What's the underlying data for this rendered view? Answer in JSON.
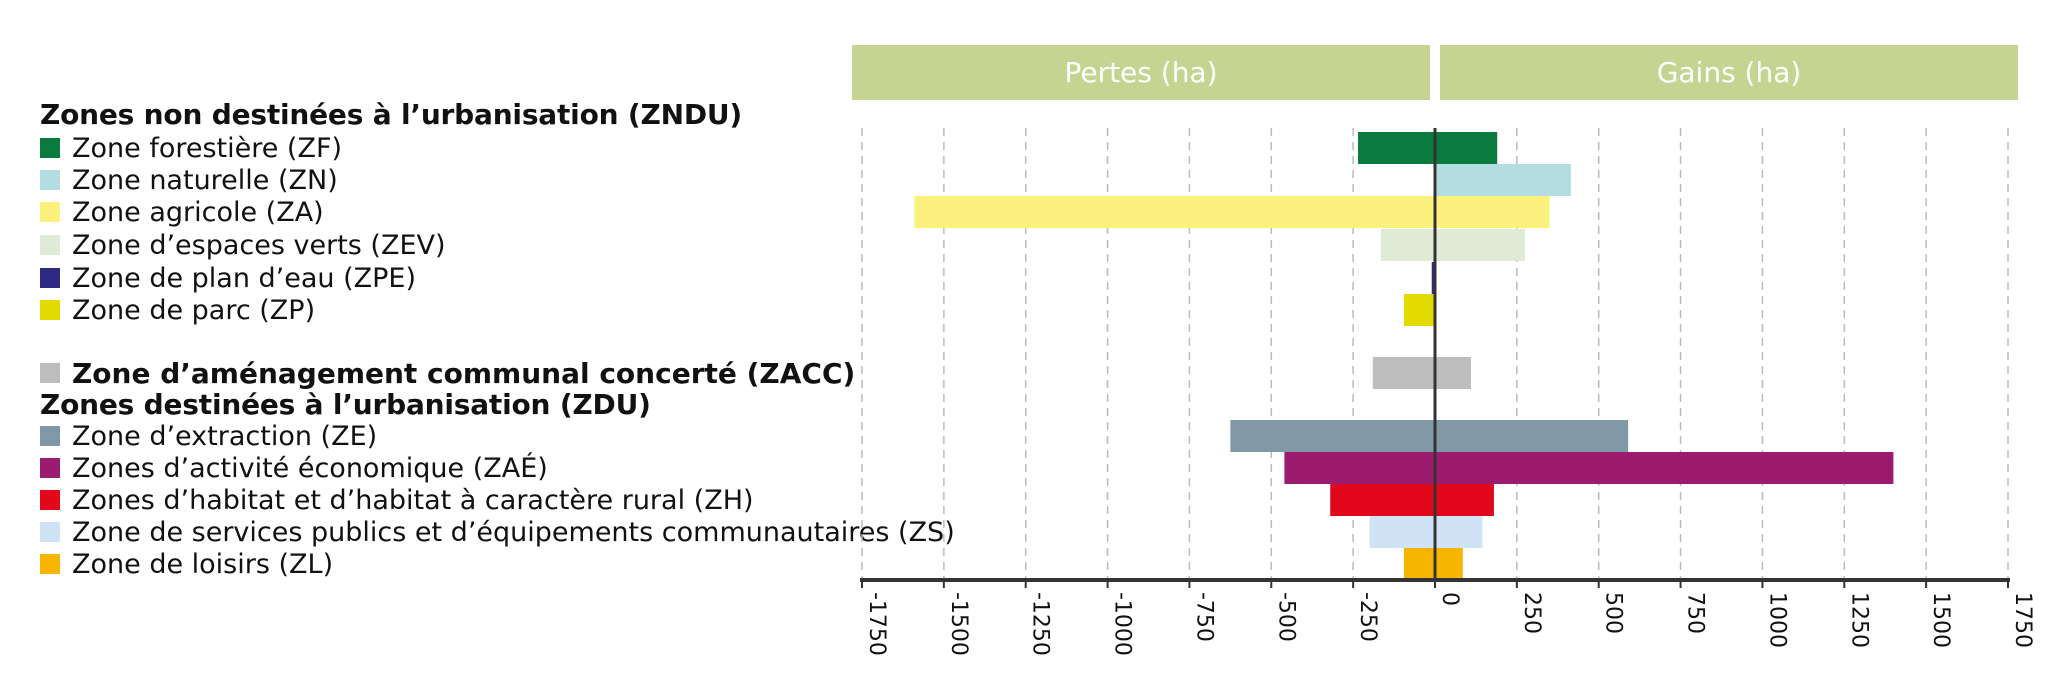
{
  "headers": {
    "losses": "Pertes (ha)",
    "gains": "Gains (ha)"
  },
  "legend": {
    "zndu_title": "Zones non destinées à l’urbanisation (ZNDU)",
    "zacc_label": "Zone d’aménagement communal concerté (ZACC)",
    "zdu_title": "Zones destinées à l’urbanisation (ZDU)"
  },
  "colors": {
    "header_bg": "#c5d591",
    "axis": "#333333",
    "grid": "#bbbbbb"
  },
  "chart_data": {
    "type": "bar",
    "orientation": "horizontal",
    "xlim": [
      -1750,
      1750
    ],
    "xticks": [
      -1750,
      -1500,
      -1250,
      -1000,
      -750,
      -500,
      -250,
      0,
      250,
      500,
      750,
      1000,
      1250,
      1500,
      1750
    ],
    "grid": true,
    "categories": [
      {
        "label": "Zone forestière (ZF)",
        "color": "#0b7a3e",
        "loss": -235,
        "gain": 190
      },
      {
        "label": "Zone naturelle (ZN)",
        "color": "#b3dde0",
        "loss": 0,
        "gain": 415
      },
      {
        "label": "Zone agricole (ZA)",
        "color": "#fdf17d",
        "loss": -1590,
        "gain": 350
      },
      {
        "label": "Zone d’espaces verts (ZEV)",
        "color": "#dfebd6",
        "loss": -165,
        "gain": 275
      },
      {
        "label": "Zone de plan d’eau (ZPE)",
        "color": "#2e2a84",
        "loss": -10,
        "gain": 0
      },
      {
        "label": "Zone de parc (ZP)",
        "color": "#e3db00",
        "loss": -95,
        "gain": 0
      },
      {
        "label": "Zone d’aménagement communal concerté (ZACC)",
        "color": "#bdbdbd",
        "loss": -190,
        "gain": 110
      },
      {
        "label": "Zone d’extraction (ZE)",
        "color": "#8199a6",
        "loss": -625,
        "gain": 590
      },
      {
        "label": "Zones d’activité économique (ZAÉ)",
        "color": "#9b1b6e",
        "loss": -460,
        "gain": 1400
      },
      {
        "label": "Zones d’habitat et d’habitat à caractère rural (ZH)",
        "color": "#e3071b",
        "loss": -320,
        "gain": 180
      },
      {
        "label": "Zone de services publics et d’équipements communautaires (ZS)",
        "color": "#cfe3f5",
        "loss": -200,
        "gain": 145
      },
      {
        "label": "Zone de loisirs (ZL)",
        "color": "#f7b400",
        "loss": -95,
        "gain": 85
      }
    ]
  }
}
